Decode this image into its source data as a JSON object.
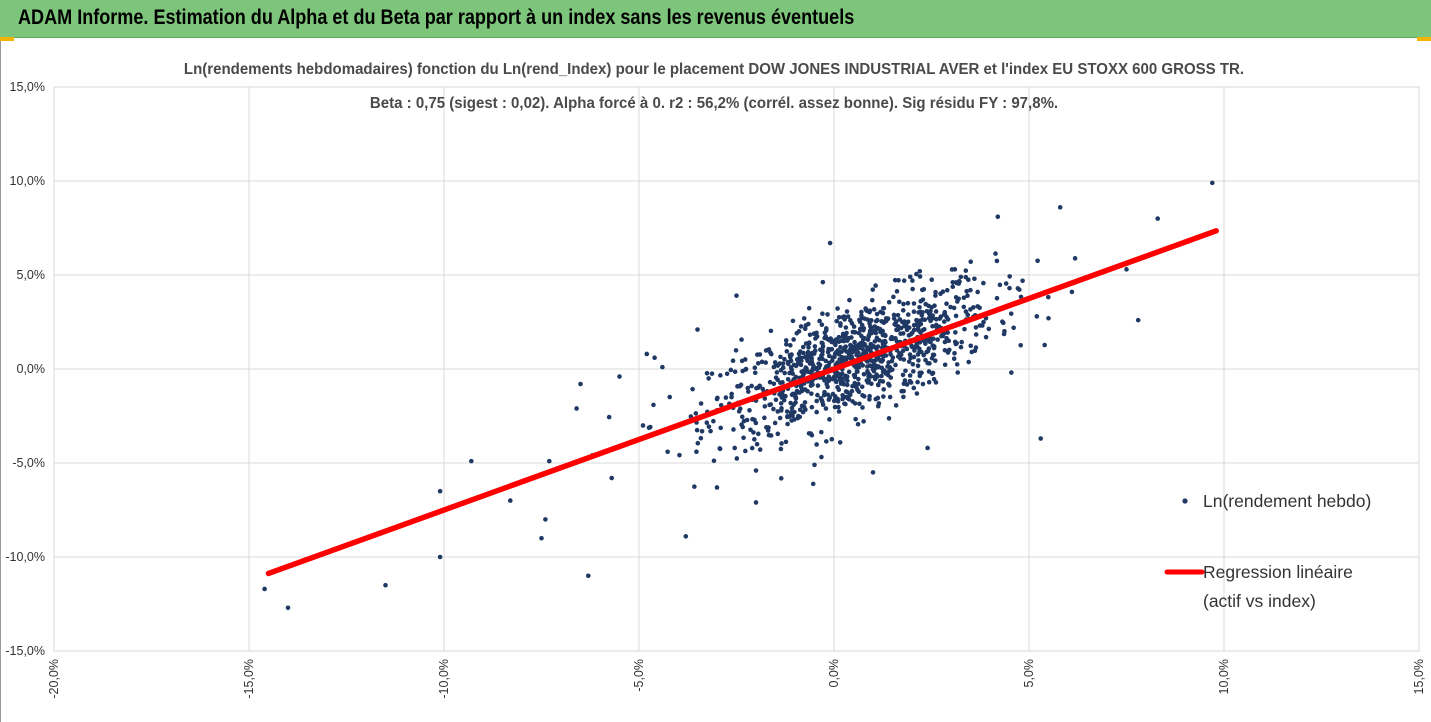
{
  "banner": {
    "title": "ADAM Informe. Estimation du Alpha et du Beta par rapport à un index sans les revenus éventuels",
    "color": "#7dc57a"
  },
  "chart_data": {
    "type": "scatter",
    "title": "Ln(rendements hebdomadaires) fonction du Ln(rend_Index) pour le placement DOW JONES INDUSTRIAL AVER et l'index EU STOXX 600 GROSS TR.",
    "subtitle": "Beta : 0,75 (sigest : 0,02). Alpha forcé à 0. r2 : 56,2% (corrél. assez bonne). Sig résidu FY : 97,8%.",
    "xlim": [
      -0.2,
      0.15
    ],
    "ylim": [
      -0.15,
      0.15
    ],
    "x_ticks": [
      "-20,0%",
      "-15,0%",
      "-10,0%",
      "-5,0%",
      "0,0%",
      "5,0%",
      "10,0%",
      "15,0%"
    ],
    "y_ticks": [
      "15,0%",
      "10,0%",
      "5,0%",
      "0,0%",
      "-5,0%",
      "-10,0%",
      "-15,0%"
    ],
    "grid": true,
    "legend_position": "right",
    "series": [
      {
        "name": "Ln(rendement hebdo)",
        "color": "#1f3864",
        "points": [
          [
            0.097,
            0.099
          ],
          [
            0.058,
            0.086
          ],
          [
            0.042,
            0.081
          ],
          [
            0.083,
            0.08
          ],
          [
            -0.001,
            0.067
          ],
          [
            0.075,
            0.053
          ],
          [
            0.061,
            0.041
          ],
          [
            0.055,
            0.027
          ],
          [
            0.078,
            0.026
          ],
          [
            0.052,
            0.028
          ],
          [
            0.053,
            -0.037
          ],
          [
            0.024,
            -0.042
          ],
          [
            0.01,
            -0.055
          ],
          [
            -0.005,
            -0.051
          ],
          [
            -0.02,
            -0.054
          ],
          [
            -0.038,
            -0.089
          ],
          [
            -0.03,
            -0.063
          ],
          [
            -0.02,
            -0.071
          ],
          [
            -0.063,
            -0.11
          ],
          [
            -0.075,
            -0.09
          ],
          [
            -0.074,
            -0.08
          ],
          [
            -0.083,
            -0.07
          ],
          [
            -0.093,
            -0.049
          ],
          [
            -0.101,
            -0.065
          ],
          [
            -0.101,
            -0.1
          ],
          [
            -0.115,
            -0.115
          ],
          [
            -0.14,
            -0.127
          ],
          [
            -0.146,
            -0.117
          ],
          [
            -0.025,
            0.039
          ],
          [
            -0.035,
            0.021
          ],
          [
            -0.048,
            0.008
          ],
          [
            -0.046,
            0.006
          ],
          [
            -0.055,
            -0.004
          ],
          [
            -0.065,
            -0.008
          ],
          [
            -0.066,
            -0.021
          ],
          [
            -0.057,
            -0.058
          ],
          [
            -0.062,
            -0.046
          ],
          [
            -0.073,
            -0.049
          ],
          [
            -0.044,
            0.001
          ],
          [
            -0.03,
            -0.022
          ],
          [
            0.036,
            0.048
          ],
          [
            0.031,
            0.053
          ],
          [
            0.022,
            0.052
          ],
          [
            0.018,
            0.047
          ],
          [
            0.045,
            0.043
          ]
        ],
        "cloud_count": 1050,
        "cloud_center": [
          0.005,
          0.004
        ],
        "cloud_spread": [
          0.018,
          0.017
        ]
      },
      {
        "name": "Regression linéaire (actif vs index)",
        "color": "#ff0000",
        "slope": 0.75,
        "intercept": 0,
        "x_range": [
          -0.145,
          0.098
        ]
      }
    ],
    "legend": {
      "scatter_label": "Ln(rendement hebdo)",
      "line_label_1": "Regression linéaire",
      "line_label_2": "(actif vs index)"
    }
  }
}
